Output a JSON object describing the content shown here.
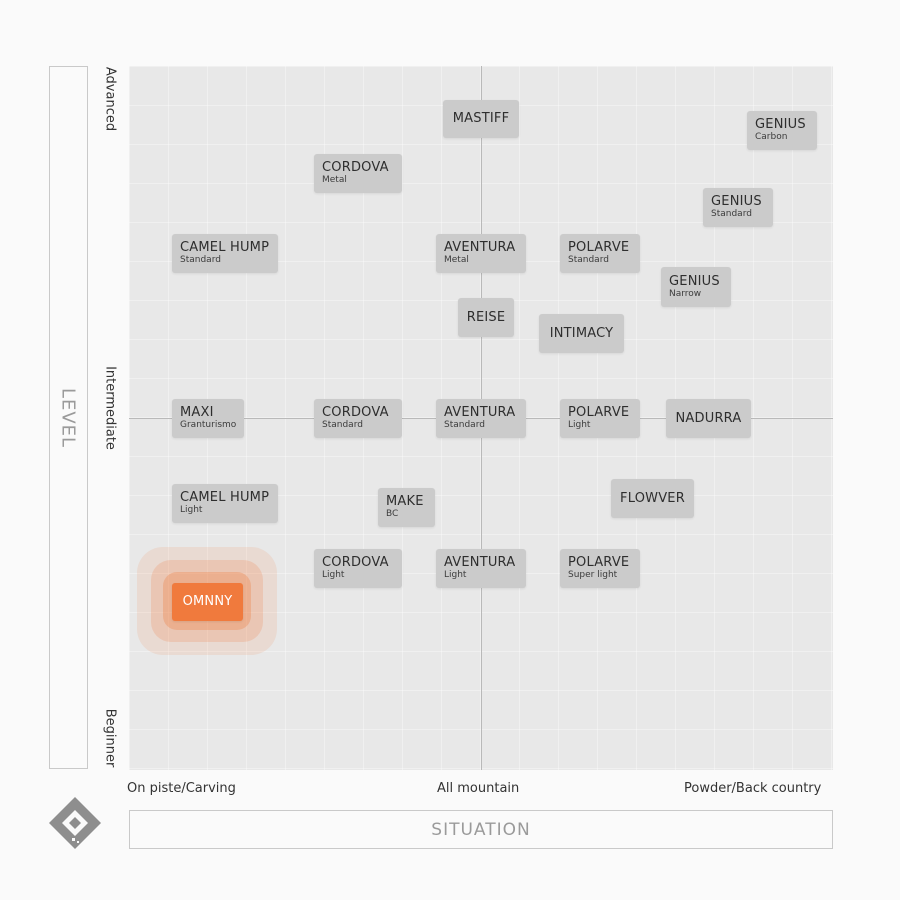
{
  "axes": {
    "y_title": "LEVEL",
    "x_title": "SITUATION",
    "y_ticks": [
      "Advanced",
      "Intermediate",
      "Beginner"
    ],
    "x_ticks": [
      "On piste/Carving",
      "All mountain",
      "Powder/Back country"
    ]
  },
  "colors": {
    "plot_bg": "#e8e8e8",
    "product_bg": "#cbcbcb",
    "highlight": "#f07a3d"
  },
  "logo_icon": "diamond-logo-icon",
  "products": [
    {
      "name": "MASTIFF",
      "variant": ""
    },
    {
      "name": "GENIUS",
      "variant": "Carbon"
    },
    {
      "name": "CORDOVA",
      "variant": "Metal"
    },
    {
      "name": "GENIUS",
      "variant": "Standard"
    },
    {
      "name": "CAMEL HUMP",
      "variant": "Standard"
    },
    {
      "name": "AVENTURA",
      "variant": "Metal"
    },
    {
      "name": "POLARVE",
      "variant": "Standard"
    },
    {
      "name": "GENIUS",
      "variant": "Narrow"
    },
    {
      "name": "REISE",
      "variant": ""
    },
    {
      "name": "INTIMACY",
      "variant": ""
    },
    {
      "name": "MAXI",
      "variant": "Granturismo"
    },
    {
      "name": "CORDOVA",
      "variant": "Standard"
    },
    {
      "name": "AVENTURA",
      "variant": "Standard"
    },
    {
      "name": "POLARVE",
      "variant": "Light"
    },
    {
      "name": "NADURRA",
      "variant": ""
    },
    {
      "name": "CAMEL HUMP",
      "variant": "Light"
    },
    {
      "name": "MAKE",
      "variant": "BC"
    },
    {
      "name": "FLOWVER",
      "variant": ""
    },
    {
      "name": "CORDOVA",
      "variant": "Light"
    },
    {
      "name": "AVENTURA",
      "variant": "Light"
    },
    {
      "name": "POLARVE",
      "variant": "Super light"
    },
    {
      "name": "OMNNY",
      "variant": "",
      "highlighted": true
    }
  ]
}
